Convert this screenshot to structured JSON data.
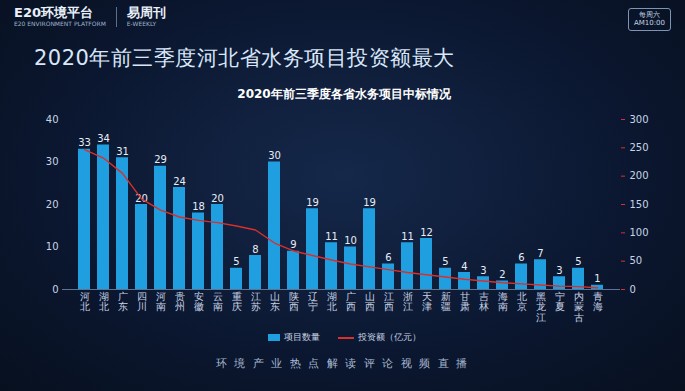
{
  "header": {
    "logo1": "E20环境平台",
    "logo1_sub": "E20 ENVIRONMENT PLATFORM",
    "logo2": "易周刊",
    "logo2_sub": "E-WEEKLY",
    "badge": [
      "每周六",
      "AM10:00"
    ],
    "title": "2020年前三季度河北省水务项目投资额最大"
  },
  "chart_data": {
    "type": "bar",
    "title": "2020年前三季度各省水务项目中标情况",
    "categories": [
      "河北",
      "湖北",
      "广东",
      "四川",
      "河南",
      "贵州",
      "安徽",
      "云南",
      "重庆",
      "江苏",
      "山东",
      "陕西",
      "辽宁",
      "湖北",
      "广西",
      "山西",
      "江西",
      "浙江",
      "天津",
      "新疆",
      "甘肃",
      "吉林",
      "海南",
      "北京",
      "黑龙江",
      "宁夏",
      "内蒙古",
      "青海"
    ],
    "series": [
      {
        "name": "项目数量",
        "type": "bar",
        "color": "#1f9fe0",
        "data_labels": true,
        "values": [
          33,
          34,
          31,
          20,
          29,
          24,
          18,
          20,
          5,
          8,
          30,
          9,
          19,
          11,
          10,
          19,
          6,
          11,
          12,
          5,
          4,
          3,
          2,
          6,
          7,
          3,
          5,
          1
        ]
      },
      {
        "name": "投资额（亿元）",
        "type": "line",
        "color": "#d9302c",
        "axis": "y2",
        "values": [
          247,
          232,
          205,
          160,
          140,
          128,
          122,
          118,
          112,
          105,
          82,
          68,
          60,
          52,
          45,
          40,
          35,
          30,
          26,
          22,
          18,
          15,
          12,
          10,
          8,
          6,
          5,
          3
        ]
      }
    ],
    "ylim": [
      0,
      40
    ],
    "yticks": [
      0,
      10,
      20,
      30,
      40
    ],
    "y2lim": [
      0,
      300
    ],
    "y2ticks": [
      0,
      50,
      100,
      150,
      200,
      250,
      300
    ],
    "legend": "bottom"
  },
  "footer": "环境产业热点解读评论视频直播"
}
